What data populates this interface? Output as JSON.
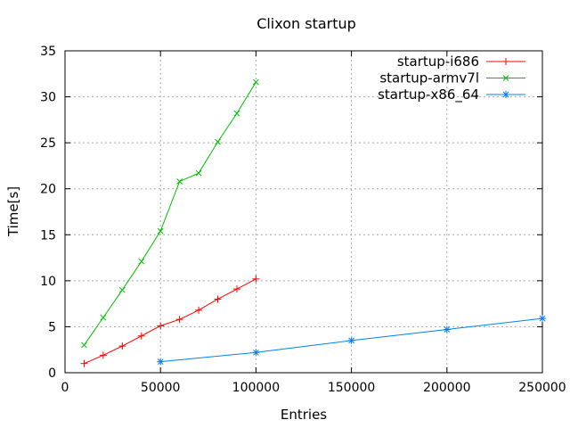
{
  "window": {
    "background": "#ffffff",
    "text_color": "#000000",
    "grid_color": "#a8a8a8",
    "border_color": "#000000"
  },
  "chart_data": {
    "type": "line",
    "title": "Clixon startup",
    "xlabel": "Entries",
    "ylabel": "Time[s]",
    "xlim": [
      0,
      250000
    ],
    "ylim": [
      0,
      35
    ],
    "xticks": [
      0,
      50000,
      100000,
      150000,
      200000,
      250000
    ],
    "xtick_labels": [
      "0",
      "50000",
      "100000",
      "150000",
      "200000",
      "250000"
    ],
    "yticks": [
      0,
      5,
      10,
      15,
      20,
      25,
      30,
      35
    ],
    "ytick_labels": [
      "0",
      "5",
      "10",
      "15",
      "20",
      "25",
      "30",
      "35"
    ],
    "grid": true,
    "grid_style": "dashed",
    "legend_position": "top-right-inside",
    "series": [
      {
        "name": "startup-i686",
        "color": "#ff0000",
        "marker": "plus",
        "x": [
          10000,
          20000,
          30000,
          40000,
          50000,
          60000,
          70000,
          80000,
          90000,
          100000
        ],
        "y": [
          1.0,
          1.9,
          2.9,
          4.0,
          5.1,
          5.8,
          6.8,
          8.0,
          9.1,
          10.2
        ]
      },
      {
        "name": "startup-armv7l",
        "color": "#00c000",
        "marker": "cross",
        "x": [
          10000,
          20000,
          30000,
          40000,
          50000,
          60000,
          70000,
          80000,
          90000,
          100000
        ],
        "y": [
          3.0,
          6.0,
          9.0,
          12.1,
          15.4,
          20.8,
          21.7,
          25.1,
          28.2,
          31.6
        ]
      },
      {
        "name": "startup-x86_64",
        "color": "#0080ff",
        "marker": "asterisk",
        "x": [
          50000,
          100000,
          150000,
          200000,
          250000
        ],
        "y": [
          1.2,
          2.2,
          3.5,
          4.7,
          5.9
        ]
      }
    ]
  }
}
